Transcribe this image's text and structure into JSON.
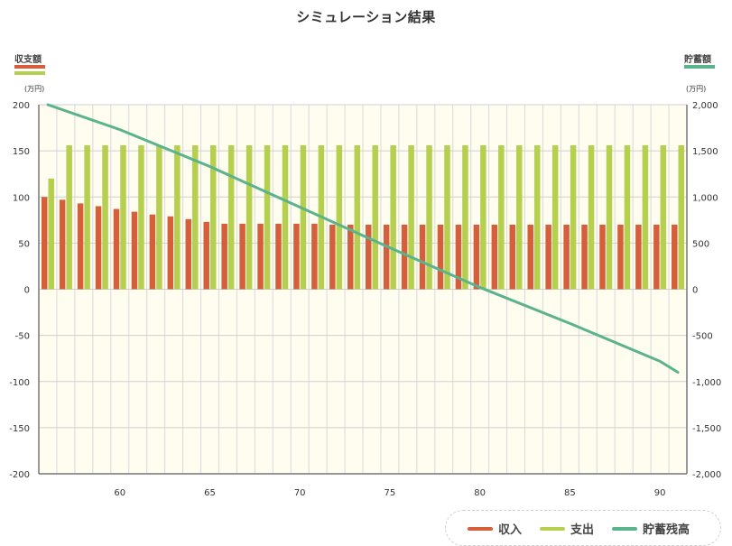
{
  "title": "シミュレーション結果",
  "left_axis": {
    "label": "収支額",
    "unit": "(万円)"
  },
  "right_axis": {
    "label": "貯蓄額",
    "unit": "(万円)"
  },
  "legend": [
    {
      "label": "収入",
      "color": "#d45f3a"
    },
    {
      "label": "支出",
      "color": "#b5cf4e"
    },
    {
      "label": "貯蓄残高",
      "color": "#5bb38e"
    }
  ],
  "chart_data": {
    "type": "bar",
    "x": [
      56,
      57,
      58,
      59,
      60,
      61,
      62,
      63,
      64,
      65,
      66,
      67,
      68,
      69,
      70,
      71,
      72,
      73,
      74,
      75,
      76,
      77,
      78,
      79,
      80,
      81,
      82,
      83,
      84,
      85,
      86,
      87,
      88,
      89,
      90,
      91
    ],
    "x_ticks": [
      60,
      65,
      70,
      75,
      80,
      85,
      90
    ],
    "xlim": [
      55.5,
      91.5
    ],
    "series": [
      {
        "name": "収入",
        "axis": "left",
        "type": "bar",
        "color": "#d45f3a",
        "values": [
          100,
          97,
          93,
          90,
          87,
          84,
          81,
          79,
          76,
          73,
          71,
          71,
          71,
          71,
          71,
          71,
          70,
          70,
          70,
          70,
          70,
          70,
          70,
          70,
          70,
          70,
          70,
          70,
          70,
          70,
          70,
          70,
          70,
          70,
          70,
          70
        ]
      },
      {
        "name": "支出",
        "axis": "left",
        "type": "bar",
        "color": "#b5cf4e",
        "values": [
          120,
          156,
          156,
          156,
          156,
          156,
          156,
          156,
          156,
          156,
          156,
          156,
          156,
          156,
          156,
          156,
          156,
          156,
          156,
          156,
          156,
          156,
          156,
          156,
          156,
          156,
          156,
          156,
          156,
          156,
          156,
          156,
          156,
          156,
          156,
          156
        ]
      },
      {
        "name": "貯蓄残高",
        "axis": "right",
        "type": "line",
        "color": "#5bb38e",
        "x": [
          56,
          60,
          65,
          70,
          75,
          80,
          85,
          90,
          91
        ],
        "values": [
          2000,
          1730,
          1330,
          890,
          450,
          20,
          -370,
          -780,
          -900
        ]
      }
    ],
    "ylim_left": [
      -200,
      200
    ],
    "yticks_left": [
      "200",
      "150",
      "100",
      "50",
      "0",
      "-50",
      "-100",
      "-150",
      "-200"
    ],
    "ylim_right": [
      -2000,
      2000
    ],
    "yticks_right": [
      "2,000",
      "1,500",
      "1,000",
      "500",
      "0",
      "-500",
      "-1,000",
      "-1,500",
      "-2,000"
    ],
    "grid": true,
    "legend_position": "bottom-right"
  }
}
